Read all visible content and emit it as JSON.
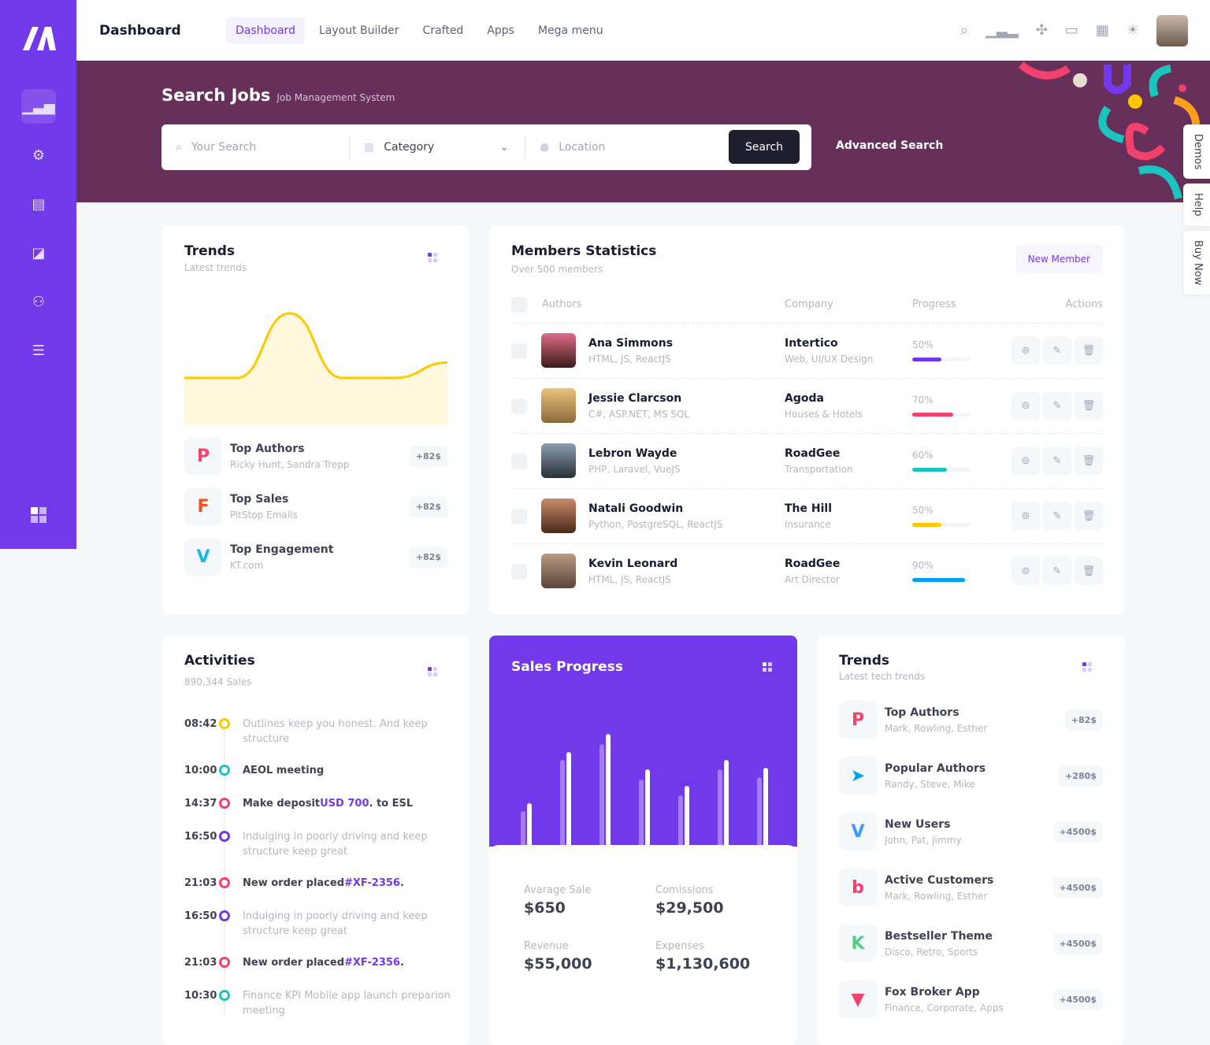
{
  "header": {
    "title": "Dashboard",
    "nav": [
      {
        "label": "Dashboard",
        "active": true
      },
      {
        "label": "Layout Builder"
      },
      {
        "label": "Crafted"
      },
      {
        "label": "Apps"
      },
      {
        "label": "Mega menu"
      }
    ]
  },
  "sidebar": {
    "items": [
      "chart-icon",
      "gear-icon",
      "document-icon",
      "note-icon",
      "users-icon",
      "list-icon"
    ],
    "bottom": "grid-icon"
  },
  "banner": {
    "title": "Search Jobs",
    "subtitle": "Job Management System",
    "search_placeholder": "Your Search",
    "category": "Category",
    "location_placeholder": "Location",
    "search_label": "Search",
    "advanced_label": "Advanced Search"
  },
  "side_tabs": [
    "Demos",
    "Help",
    "Buy Now"
  ],
  "trends": {
    "title": "Trends",
    "subtitle": "Latest trends",
    "chart": {
      "type": "area",
      "values": [
        20,
        20,
        62,
        20,
        20,
        30
      ],
      "color": "#ffc700",
      "fill": "#fff8dd"
    },
    "items": [
      {
        "title": "Top Authors",
        "sub": "Ricky Hunt, Sandra Trepp",
        "badge": "+82$",
        "icon": "P",
        "color": "#f1416c"
      },
      {
        "title": "Top Sales",
        "sub": "PitStop Emails",
        "badge": "+82$",
        "icon": "F",
        "color": "#f24e1e"
      },
      {
        "title": "Top Engagement",
        "sub": "KT.com",
        "badge": "+82$",
        "icon": "V",
        "color": "#1ab7ea"
      }
    ]
  },
  "members": {
    "title": "Members Statistics",
    "subtitle": "Over 500 members",
    "new_label": "New Member",
    "columns": [
      "Authors",
      "Company",
      "Progress",
      "Actions"
    ],
    "rows": [
      {
        "name": "Ana Simmons",
        "skills": "HTML, JS, ReactJS",
        "company": "Intertico",
        "company_sub": "Web, UI/UX Design",
        "progress": "50%",
        "color": "#7239ea"
      },
      {
        "name": "Jessie Clarcson",
        "skills": "C#, ASP.NET, MS SQL",
        "company": "Agoda",
        "company_sub": "Houses & Hotels",
        "progress": "70%",
        "color": "#f1416c"
      },
      {
        "name": "Lebron Wayde",
        "skills": "PHP, Laravel, VueJS",
        "company": "RoadGee",
        "company_sub": "Transportation",
        "progress": "60%",
        "color": "#1bc5bd"
      },
      {
        "name": "Natali Goodwin",
        "skills": "Python, PostgreSQL, ReactJS",
        "company": "The Hill",
        "company_sub": "Insurance",
        "progress": "50%",
        "color": "#ffc700"
      },
      {
        "name": "Kevin Leonard",
        "skills": "HTML, JS, ReactJS",
        "company": "RoadGee",
        "company_sub": "Art Director",
        "progress": "90%",
        "color": "#009ef7"
      }
    ]
  },
  "activities": {
    "title": "Activities",
    "subtitle": "890,344 Sales",
    "items": [
      {
        "time": "08:42",
        "text": "Outlines keep you honest. And keep structure",
        "color": "#ffc700",
        "bold": false
      },
      {
        "time": "10:00",
        "text": "AEOL meeting",
        "color": "#1bc5bd",
        "bold": true
      },
      {
        "time": "14:37",
        "text": "Make deposit",
        "link": "USD 700",
        "after": ". to ESL",
        "color": "#f1416c",
        "bold": true
      },
      {
        "time": "16:50",
        "text": "Indulging in poorly driving and keep structure keep great",
        "color": "#7239ea",
        "bold": false
      },
      {
        "time": "21:03",
        "text": "New order placed",
        "link": "#XF-2356",
        "after": ".",
        "color": "#f1416c",
        "bold": true
      },
      {
        "time": "16:50",
        "text": "Indulging in poorly driving and keep structure keep great",
        "color": "#7239ea",
        "bold": false
      },
      {
        "time": "21:03",
        "text": "New order placed",
        "link": "#XF-2356",
        "after": ".",
        "color": "#f1416c",
        "bold": true
      },
      {
        "time": "10:30",
        "text": "Finance KPI Mobile app launch preparion meeting",
        "color": "#1bc5bd",
        "bold": false
      }
    ]
  },
  "sales": {
    "title": "Sales Progress",
    "bars": [
      {
        "a": 45,
        "b": 55
      },
      {
        "a": 110,
        "b": 120
      },
      {
        "a": 130,
        "b": 143
      },
      {
        "a": 85,
        "b": 98
      },
      {
        "a": 65,
        "b": 77
      },
      {
        "a": 98,
        "b": 110
      },
      {
        "a": 88,
        "b": 100
      }
    ],
    "stats": [
      {
        "label": "Avarage Sale",
        "value": "$650"
      },
      {
        "label": "Comissions",
        "value": "$29,500"
      },
      {
        "label": "Revenue",
        "value": "$55,000"
      },
      {
        "label": "Expenses",
        "value": "$1,130,600"
      }
    ]
  },
  "trends2": {
    "title": "Trends",
    "subtitle": "Latest tech trends",
    "items": [
      {
        "title": "Top Authors",
        "sub": "Mark, Rowling, Esther",
        "badge": "+82$",
        "icon": "P",
        "color": "#f1416c"
      },
      {
        "title": "Popular Authors",
        "sub": "Randy, Steve, Mike",
        "badge": "+280$",
        "icon": "➤",
        "color": "#009ef7"
      },
      {
        "title": "New Users",
        "sub": "John, Pat, Jimmy",
        "badge": "+4500$",
        "icon": "V",
        "color": "#3e97ff"
      },
      {
        "title": "Active Customers",
        "sub": "Mark, Rowling, Esther",
        "badge": "+4500$",
        "icon": "b",
        "color": "#f1416c"
      },
      {
        "title": "Bestseller Theme",
        "sub": "Disco, Retro, Sports",
        "badge": "+4500$",
        "icon": "K",
        "color": "#50cd89"
      },
      {
        "title": "Fox Broker App",
        "sub": "Finance, Corporate, Apps",
        "badge": "+4500$",
        "icon": "▼",
        "color": "#f1416c"
      }
    ]
  }
}
